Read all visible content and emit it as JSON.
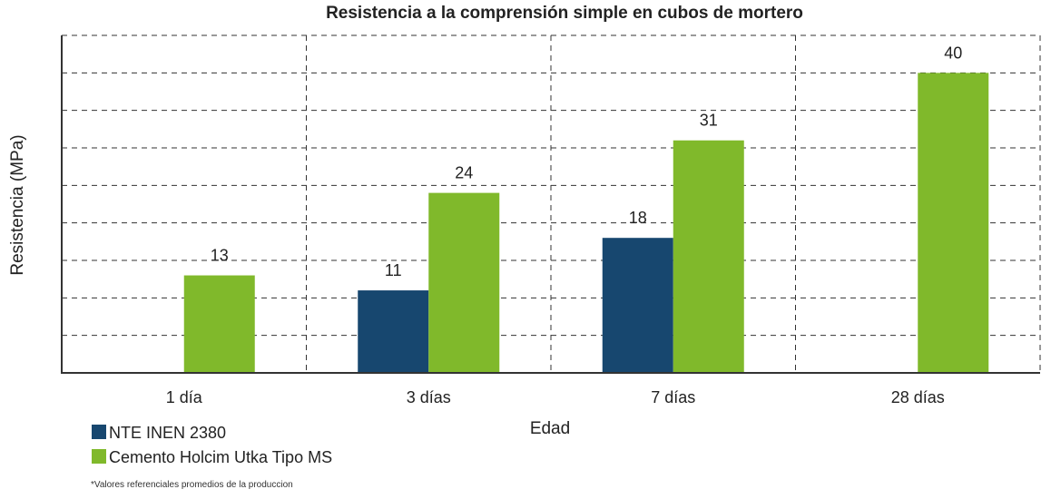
{
  "chart_data": {
    "type": "bar",
    "title": "Resistencia a la comprensión simple en cubos de mortero",
    "xlabel": "Edad",
    "ylabel": "Resistencia (MPa)",
    "categories": [
      "1 día",
      "3 días",
      "7 días",
      "28 días"
    ],
    "ylim": [
      0,
      45
    ],
    "y_gridline_step": 5,
    "grid": true,
    "series": [
      {
        "name": "NTE INEN 2380",
        "color": "#17476f",
        "values": [
          null,
          11,
          18,
          null
        ]
      },
      {
        "name": "Cemento Holcim Utka Tipo MS",
        "color": "#80b92b",
        "values": [
          13,
          24,
          31,
          40
        ]
      }
    ],
    "legend_position": "bottom-left",
    "footnote": "*Valores referenciales promedios de la produccion"
  }
}
